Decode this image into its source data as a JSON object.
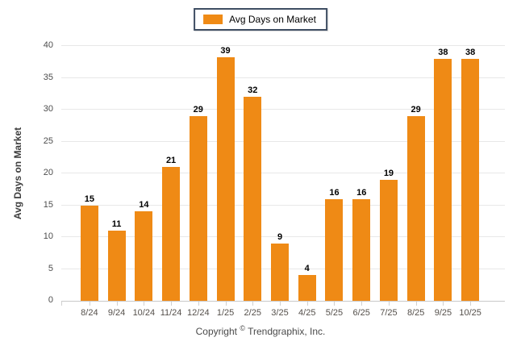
{
  "chart_data": {
    "type": "bar",
    "title": "",
    "legend": {
      "label": "Avg Days on Market",
      "position": "top-center"
    },
    "categories": [
      "8/24",
      "9/24",
      "10/24",
      "11/24",
      "12/24",
      "1/25",
      "2/25",
      "3/25",
      "4/25",
      "5/25",
      "6/25",
      "7/25",
      "8/25",
      "9/25",
      "10/25"
    ],
    "values": [
      15,
      11,
      14,
      21,
      29,
      39,
      32,
      9,
      4,
      16,
      16,
      19,
      29,
      38,
      38
    ],
    "xlabel": "",
    "ylabel": "Avg Days on Market",
    "ylim": [
      0,
      40
    ],
    "ytick_step": 5,
    "grid": "horizontal",
    "legend_position": "top-center",
    "value_labels": true,
    "bar_color": "#EF8A15"
  },
  "footer": {
    "copyright_prefix": "Copyright ",
    "copyright_symbol": "©",
    "copyright_suffix": " Trendgraphix, Inc."
  }
}
